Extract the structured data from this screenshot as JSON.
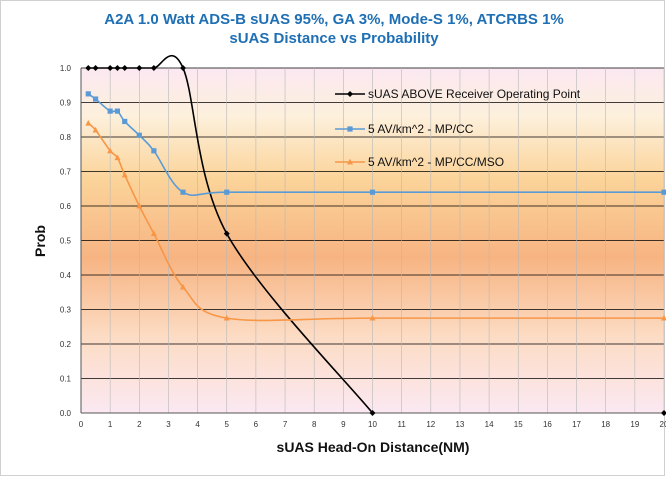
{
  "chart_data": {
    "type": "line",
    "title": "A2A 1.0 Watt ADS-B sUAS 95%, GA 3%, Mode-S 1%, ATCRBS 1%",
    "subtitle": "sUAS Distance vs Probability",
    "xlabel": "sUAS Head-On Distance(NM)",
    "ylabel": "Prob",
    "xlim": [
      0,
      20
    ],
    "ylim": [
      0,
      1.0
    ],
    "x_ticks": [
      "0",
      "1",
      "2",
      "3",
      "4",
      "5",
      "6",
      "7",
      "8",
      "9",
      "10",
      "11",
      "12",
      "13",
      "14",
      "15",
      "16",
      "17",
      "18",
      "19",
      "20"
    ],
    "y_ticks": [
      "0.0",
      "0.1",
      "0.2",
      "0.3",
      "0.4",
      "0.5",
      "0.6",
      "0.7",
      "0.8",
      "0.9",
      "1.0"
    ],
    "grid": true,
    "legend_position": "top-right",
    "series": [
      {
        "name": "sUAS ABOVE Receiver Operating Point",
        "color": "#000000",
        "marker": "diamond",
        "points": [
          [
            0.25,
            1.0
          ],
          [
            0.5,
            1.0
          ],
          [
            1.0,
            1.0
          ],
          [
            1.25,
            1.0
          ],
          [
            1.5,
            1.0
          ],
          [
            2.0,
            1.0
          ],
          [
            2.5,
            1.0
          ],
          [
            3.5,
            1.0
          ],
          [
            5.0,
            0.52
          ],
          [
            10.0,
            0.0
          ],
          [
            20.0,
            0.0
          ]
        ],
        "segments": [
          [
            0,
            9
          ],
          [
            10,
            10
          ]
        ]
      },
      {
        "name": "5 AV/km^2 - MP/CC",
        "color": "#5b9bd5",
        "marker": "square",
        "points": [
          [
            0.25,
            0.925
          ],
          [
            0.5,
            0.91
          ],
          [
            1.0,
            0.875
          ],
          [
            1.25,
            0.875
          ],
          [
            1.5,
            0.845
          ],
          [
            2.0,
            0.805
          ],
          [
            2.5,
            0.76
          ],
          [
            3.5,
            0.64
          ],
          [
            5.0,
            0.64
          ],
          [
            10.0,
            0.64
          ],
          [
            20.0,
            0.64
          ]
        ]
      },
      {
        "name": "5 AV/km^2 - MP/CC/MSO",
        "color": "#f79646",
        "marker": "triangle",
        "points": [
          [
            0.25,
            0.84
          ],
          [
            0.5,
            0.82
          ],
          [
            1.0,
            0.76
          ],
          [
            1.25,
            0.74
          ],
          [
            1.5,
            0.69
          ],
          [
            2.0,
            0.6
          ],
          [
            2.5,
            0.52
          ],
          [
            3.5,
            0.365
          ],
          [
            5.0,
            0.275
          ],
          [
            10.0,
            0.275
          ],
          [
            20.0,
            0.275
          ]
        ]
      }
    ]
  }
}
